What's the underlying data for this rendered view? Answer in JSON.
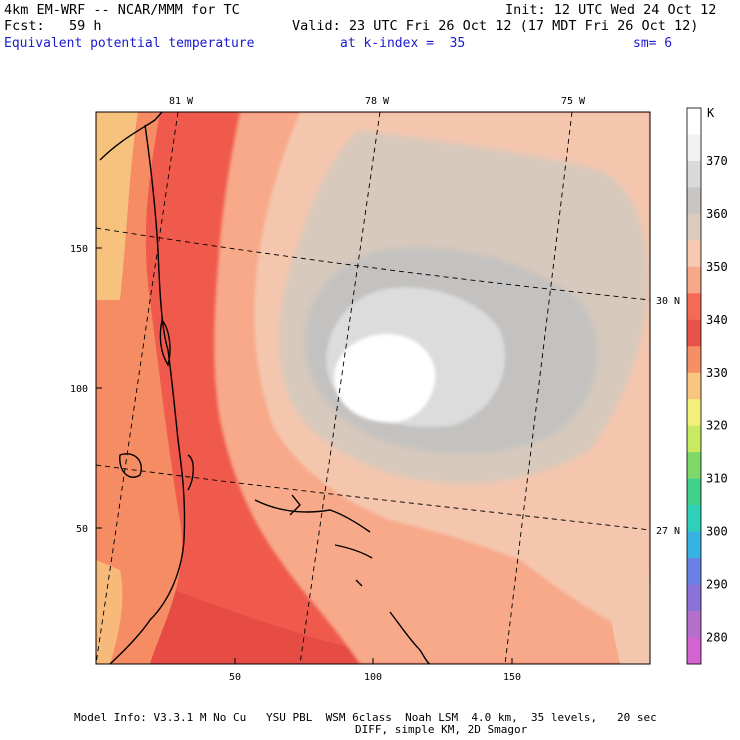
{
  "header": {
    "line1_left": "4km EM-WRF -- NCAR/MMM for TC",
    "line1_right": "Init: 12 UTC Wed 24 Oct 12",
    "line2_left": "Fcst:   59 h",
    "line2_right": "Valid: 23 UTC Fri 26 Oct 12 (17 MDT Fri 26 Oct 12)",
    "field_name": "Equivalent potential temperature",
    "level_text": "at k-index =  35",
    "smooth_text": "sm= 6"
  },
  "map": {
    "lon_labels": [
      "81 W",
      "78 W",
      "75 W"
    ],
    "lat_labels": [
      "30 N",
      "27 N"
    ],
    "x_ticks": [
      "50",
      "100",
      "150"
    ],
    "y_ticks": [
      "150",
      "100",
      "50"
    ]
  },
  "colorbar": {
    "unit": "K",
    "labels": [
      "370",
      "360",
      "350",
      "340",
      "330",
      "320",
      "310",
      "300",
      "290",
      "280"
    ],
    "colors": [
      "#ffffff",
      "#f2f2f2",
      "#d9d9d9",
      "#c8c5c2",
      "#d9cbbd",
      "#f6c9b0",
      "#f6a888",
      "#f46a55",
      "#e9524a",
      "#f58f66",
      "#f8c680",
      "#f4ef7a",
      "#c8ea60",
      "#7fd86a",
      "#3fd08a",
      "#2ed1b8",
      "#38b2e2",
      "#6a82e6",
      "#8a72d8",
      "#b46fcc",
      "#d263d0"
    ]
  },
  "footer": {
    "line1": "Model Info: V3.3.1 M No Cu   YSU PBL  WSM 6class  Noah LSM  4.0 km,  35 levels,   20 sec",
    "line2": "DIFF, simple KM, 2D Smagor"
  }
}
